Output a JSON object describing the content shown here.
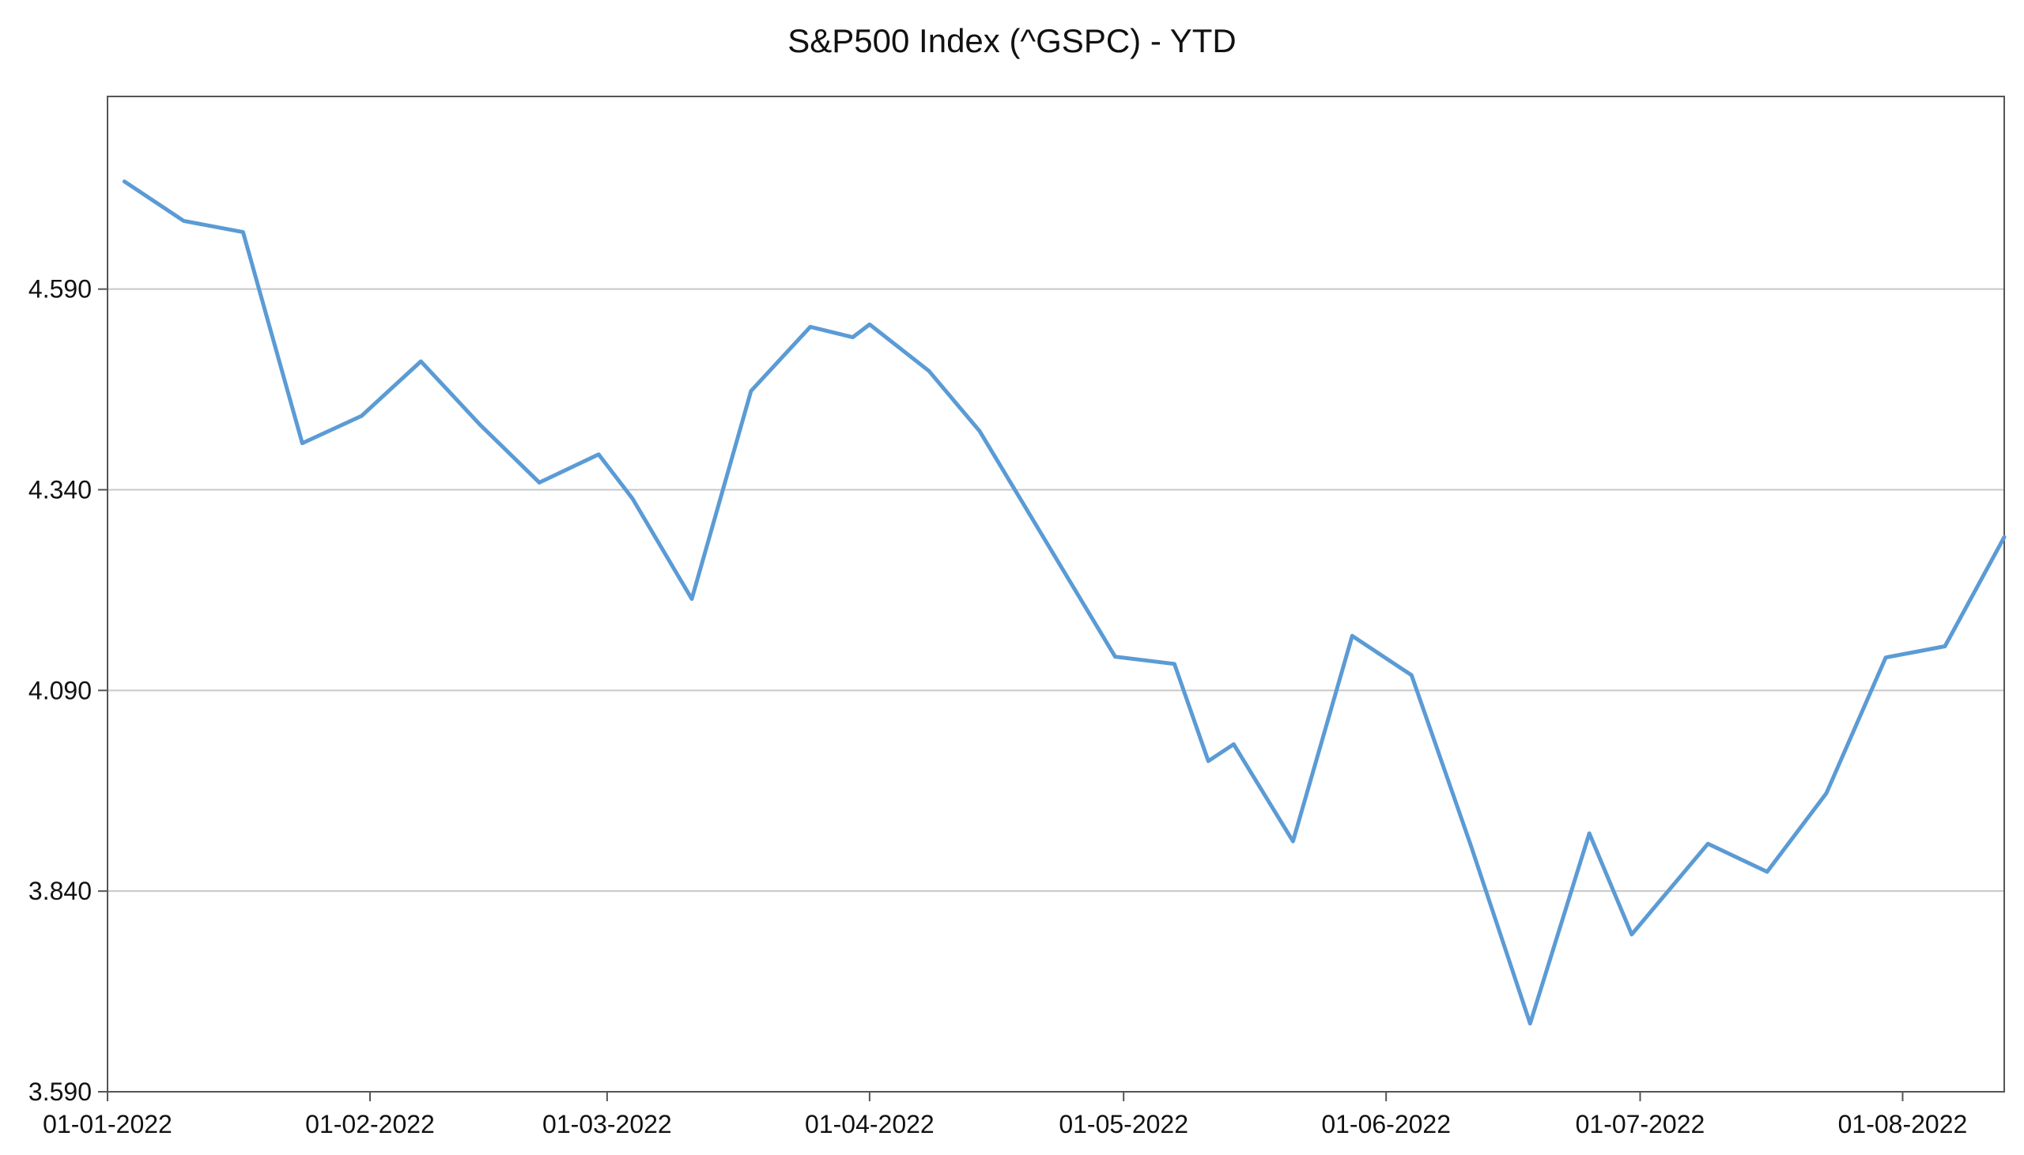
{
  "chart_data": {
    "type": "line",
    "title": "S&P500 Index (^GSPC) - YTD",
    "xlabel": "",
    "ylabel": "",
    "ylim": [
      3590,
      4830
    ],
    "xlim": [
      "2022-01-01",
      "2022-08-13"
    ],
    "grid": "horizontal",
    "legend": "none",
    "y_ticks": [
      {
        "value": 3590,
        "label": "3.590"
      },
      {
        "value": 3840,
        "label": "3.840"
      },
      {
        "value": 4090,
        "label": "4.090"
      },
      {
        "value": 4340,
        "label": "4.340"
      },
      {
        "value": 4590,
        "label": "4.590"
      }
    ],
    "x_ticks": [
      {
        "value": "2022-01-01",
        "label": "01-01-2022"
      },
      {
        "value": "2022-02-01",
        "label": "01-02-2022"
      },
      {
        "value": "2022-03-01",
        "label": "01-03-2022"
      },
      {
        "value": "2022-04-01",
        "label": "01-04-2022"
      },
      {
        "value": "2022-05-01",
        "label": "01-05-2022"
      },
      {
        "value": "2022-06-01",
        "label": "01-06-2022"
      },
      {
        "value": "2022-07-01",
        "label": "01-07-2022"
      },
      {
        "value": "2022-08-01",
        "label": "01-08-2022"
      }
    ],
    "series": [
      {
        "color": "#5b9bd5",
        "points": [
          {
            "x": "2022-01-03",
            "y": 4724
          },
          {
            "x": "2022-01-10",
            "y": 4675
          },
          {
            "x": "2022-01-17",
            "y": 4661
          },
          {
            "x": "2022-01-24",
            "y": 4398
          },
          {
            "x": "2022-01-31",
            "y": 4432
          },
          {
            "x": "2022-02-07",
            "y": 4500
          },
          {
            "x": "2022-02-14",
            "y": 4421
          },
          {
            "x": "2022-02-21",
            "y": 4349
          },
          {
            "x": "2022-02-28",
            "y": 4384
          },
          {
            "x": "2022-03-04",
            "y": 4329
          },
          {
            "x": "2022-03-11",
            "y": 4204
          },
          {
            "x": "2022-03-18",
            "y": 4463
          },
          {
            "x": "2022-03-25",
            "y": 4543
          },
          {
            "x": "2022-03-30",
            "y": 4530
          },
          {
            "x": "2022-04-01",
            "y": 4546
          },
          {
            "x": "2022-04-08",
            "y": 4488
          },
          {
            "x": "2022-04-14",
            "y": 4413
          },
          {
            "x": "2022-04-30",
            "y": 4132
          },
          {
            "x": "2022-05-07",
            "y": 4123
          },
          {
            "x": "2022-05-11",
            "y": 4002
          },
          {
            "x": "2022-05-14",
            "y": 4023
          },
          {
            "x": "2022-05-21",
            "y": 3902
          },
          {
            "x": "2022-05-28",
            "y": 4158
          },
          {
            "x": "2022-06-04",
            "y": 4109
          },
          {
            "x": "2022-06-11",
            "y": 3897
          },
          {
            "x": "2022-06-18",
            "y": 3675
          },
          {
            "x": "2022-06-25",
            "y": 3912
          },
          {
            "x": "2022-06-30",
            "y": 3786
          },
          {
            "x": "2022-07-09",
            "y": 3899
          },
          {
            "x": "2022-07-16",
            "y": 3864
          },
          {
            "x": "2022-07-23",
            "y": 3962
          },
          {
            "x": "2022-07-30",
            "y": 4131
          },
          {
            "x": "2022-08-06",
            "y": 4145
          },
          {
            "x": "2022-08-13",
            "y": 4281
          }
        ]
      }
    ]
  }
}
